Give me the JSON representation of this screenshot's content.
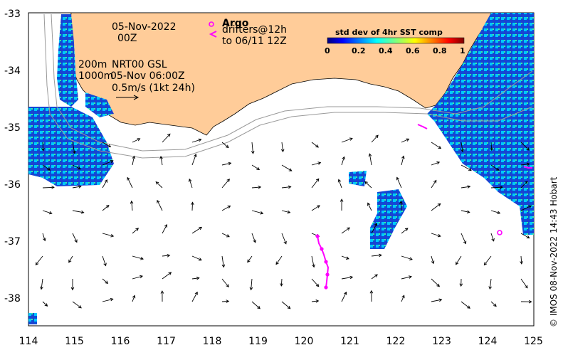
{
  "date_line1": "05-Nov-2022",
  "date_line2": "00Z",
  "argo_label": "Argo",
  "drifters_line1": "drifters@12h",
  "drifters_line2": "to 06/11 12Z",
  "iso200": "200m",
  "iso1000": "1000m",
  "product": "NRT00 GSL",
  "product_time": "05-Nov 06:00Z",
  "scale_label": "0.5m/s (1kt 24h)",
  "colorbar": {
    "title": "std dev of 4hr SST comp",
    "ticks": [
      "0",
      "0.2",
      "0.4",
      "0.6",
      "0.8",
      "1"
    ]
  },
  "credit": "© IMOS 08-Nov-2022 14:43 Hobart",
  "x_ticks": [
    "114",
    "115",
    "116",
    "117",
    "118",
    "119",
    "120",
    "121",
    "122",
    "123",
    "124",
    "125"
  ],
  "y_ticks": [
    "-33",
    "-34",
    "-35",
    "-36",
    "-37",
    "-38"
  ],
  "colors": {
    "land": "#ffcc99",
    "argo": "#ff00ff",
    "cb_start": "#00007f",
    "cb_end": "#7f0000"
  }
}
